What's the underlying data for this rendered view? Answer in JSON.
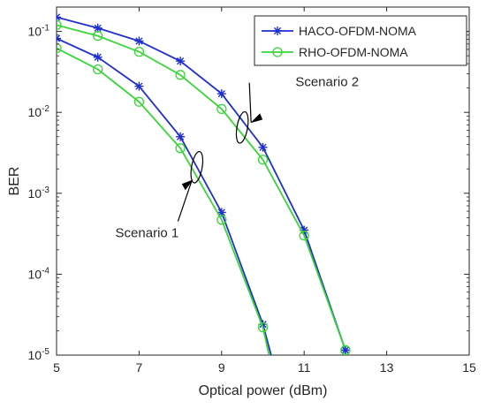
{
  "chart_data": {
    "type": "line",
    "title": "",
    "xlabel": "Optical power (dBm)",
    "ylabel": "BER",
    "xlim": [
      5,
      15
    ],
    "ylim": [
      1e-05,
      0.2
    ],
    "yscale": "log",
    "grid": false,
    "legend_position": "top-right",
    "x_ticks": [
      5,
      7,
      9,
      11,
      13,
      15
    ],
    "y_ticks": [
      {
        "value": 0.1,
        "base": "10",
        "exp": "-1"
      },
      {
        "value": 0.01,
        "base": "10",
        "exp": "-2"
      },
      {
        "value": 0.001,
        "base": "10",
        "exp": "-3"
      },
      {
        "value": 0.0001,
        "base": "10",
        "exp": "-4"
      },
      {
        "value": 1e-05,
        "base": "10",
        "exp": "-5"
      }
    ],
    "legend": [
      {
        "label": "HACO-OFDM-NOMA",
        "color": "#1f2fd0",
        "marker": "asterisk"
      },
      {
        "label": "RHO-OFDM-NOMA",
        "color": "#38d638",
        "marker": "circle"
      }
    ],
    "series": [
      {
        "name": "HACO-OFDM-NOMA",
        "group": "Scenario 2",
        "color": "#1f2fd0",
        "marker": "asterisk",
        "x": [
          5,
          6,
          7,
          8,
          9,
          10,
          11,
          12
        ],
        "y": [
          0.15,
          0.11,
          0.076,
          0.043,
          0.017,
          0.0037,
          0.00035,
          1.15e-05
        ]
      },
      {
        "name": "RHO-OFDM-NOMA",
        "group": "Scenario 2",
        "color": "#38d638",
        "marker": "circle",
        "x": [
          5,
          6,
          7,
          8,
          9,
          10,
          11,
          12
        ],
        "y": [
          0.12,
          0.088,
          0.056,
          0.029,
          0.011,
          0.0026,
          0.0003,
          1.15e-05
        ]
      },
      {
        "name": "HACO-OFDM-NOMA",
        "group": "Scenario 1",
        "color": "#1f2fd0",
        "marker": "asterisk",
        "x": [
          5,
          6,
          7,
          8,
          9,
          10,
          10.2
        ],
        "y": [
          0.082,
          0.048,
          0.021,
          0.005,
          0.00058,
          2.4e-05,
          1e-05
        ]
      },
      {
        "name": "RHO-OFDM-NOMA",
        "group": "Scenario 1",
        "color": "#38d638",
        "marker": "circle",
        "x": [
          5,
          6,
          7,
          8,
          9,
          10,
          10.15
        ],
        "y": [
          0.062,
          0.034,
          0.0135,
          0.0036,
          0.00047,
          2.2e-05,
          1e-05
        ]
      }
    ],
    "annotations": [
      {
        "text": "Scenario 2",
        "target": [
          9.5,
          0.0065
        ],
        "label_pos": [
          10.7,
          0.027
        ],
        "ellipse": true
      },
      {
        "text": "Scenario 1",
        "target": [
          8.4,
          0.0021
        ],
        "label_pos": [
          7.3,
          0.00035
        ],
        "ellipse": true
      }
    ]
  }
}
